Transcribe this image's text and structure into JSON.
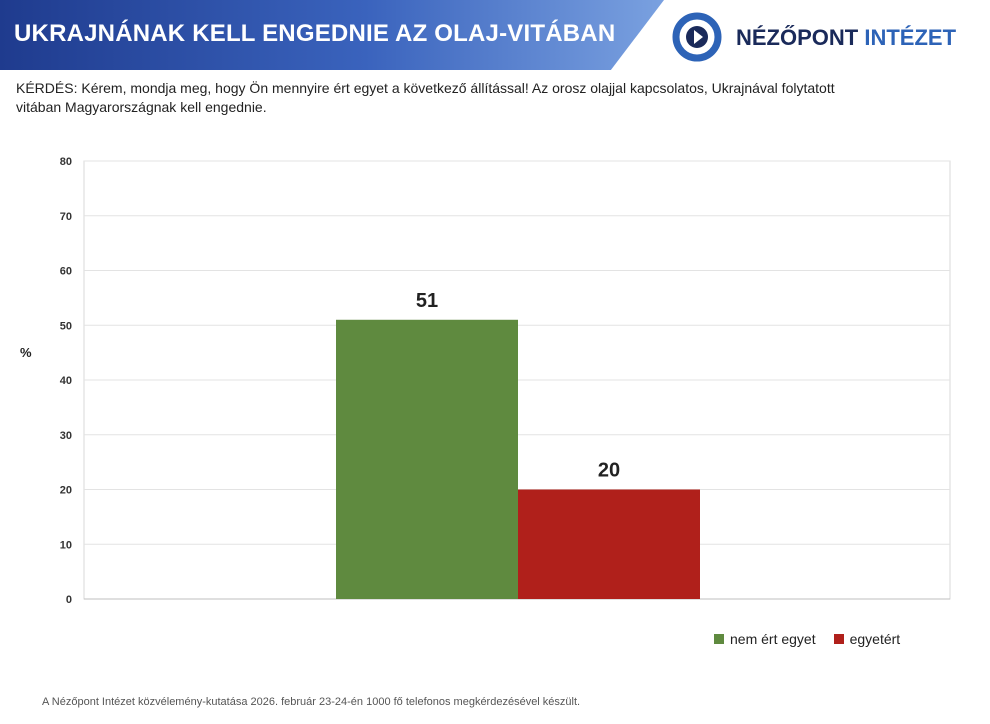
{
  "header": {
    "title": "UKRAJNÁNAK KELL ENGEDNIE AZ OLAJ-VITÁBAN",
    "logo_part1": "NÉZŐPONT",
    "logo_part2": "INTÉZET"
  },
  "question": "KÉRDÉS: Kérem, mondja meg, hogy Ön mennyire ért egyet a következő állítással! Az orosz olajjal kapcsolatos, Ukrajnával folytatott vitában Magyarországnak kell engednie.",
  "chart_data": {
    "type": "bar",
    "ylabel": "%",
    "ylim": [
      0,
      80
    ],
    "yticks": [
      0,
      10,
      20,
      30,
      40,
      50,
      60,
      70,
      80
    ],
    "grid": true,
    "legend_position": "bottom-right",
    "series": [
      {
        "name": "nem ért egyet",
        "value": 51,
        "color": "#5f8a3f"
      },
      {
        "name": "egyetért",
        "value": 20,
        "color": "#b0201b"
      }
    ]
  },
  "footer": {
    "source": "A Nézőpont Intézet közvélemény-kutatása 2026. február 23-24-én 1000 fő telefonos megkérdezésével készült."
  }
}
